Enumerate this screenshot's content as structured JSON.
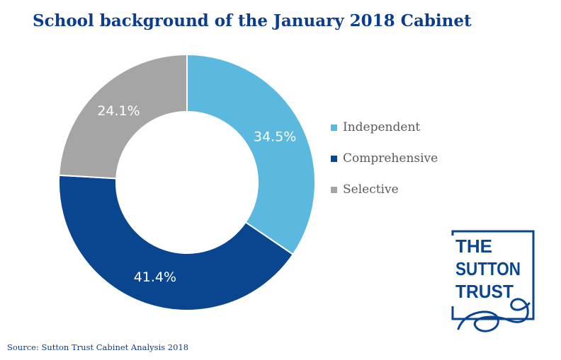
{
  "chart_data": {
    "type": "pie",
    "title": "School background of the January 2018 Cabinet",
    "categories": [
      "Independent",
      "Comprehensive",
      "Selective"
    ],
    "values": [
      34.5,
      41.4,
      24.1
    ],
    "value_labels": [
      "34.5%",
      "41.4%",
      "24.1%"
    ],
    "colors": [
      "#5bb8df",
      "#0a4690",
      "#a5a5a5"
    ],
    "style": "donut",
    "legend_position": "right"
  },
  "legend": {
    "items": [
      {
        "label": "Independent",
        "color": "#5bb8df"
      },
      {
        "label": "Comprehensive",
        "color": "#0a4690"
      },
      {
        "label": "Selective",
        "color": "#a5a5a5"
      }
    ]
  },
  "logo": {
    "line1": "THE",
    "line2": "SUTTON",
    "line3": "TRUST",
    "color": "#0a4690"
  },
  "source": "Source: Sutton Trust Cabinet Analysis 2018"
}
